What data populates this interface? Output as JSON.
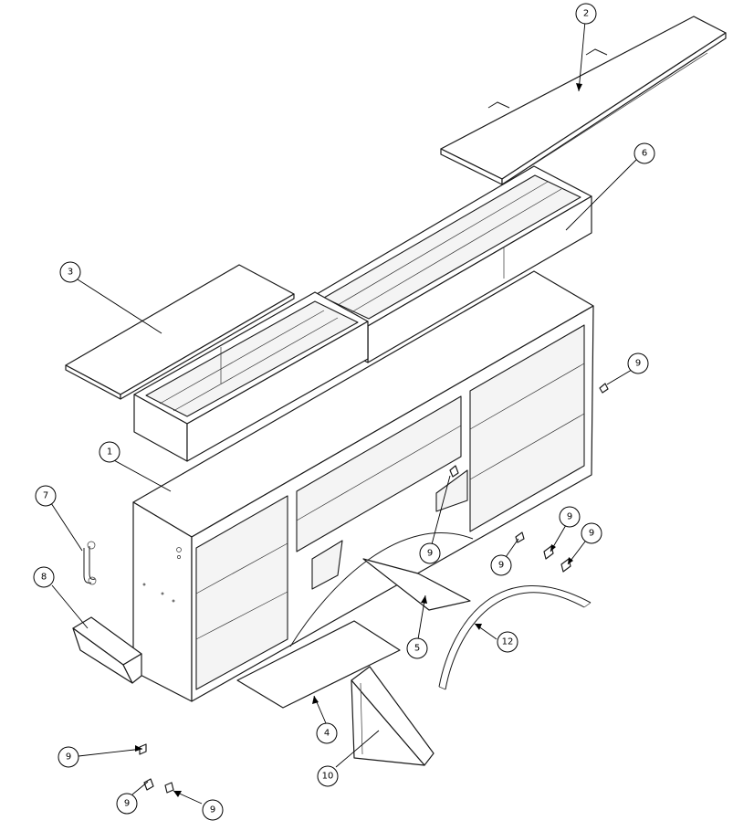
{
  "callouts": [
    {
      "label": "1"
    },
    {
      "label": "2"
    },
    {
      "label": "3"
    },
    {
      "label": "4"
    },
    {
      "label": "5"
    },
    {
      "label": "6"
    },
    {
      "label": "7"
    },
    {
      "label": "8"
    },
    {
      "label": "9"
    },
    {
      "label": "9"
    },
    {
      "label": "9"
    },
    {
      "label": "9"
    },
    {
      "label": "9"
    },
    {
      "label": "9"
    },
    {
      "label": "9"
    },
    {
      "label": "9"
    },
    {
      "label": "10"
    },
    {
      "label": "12"
    }
  ]
}
